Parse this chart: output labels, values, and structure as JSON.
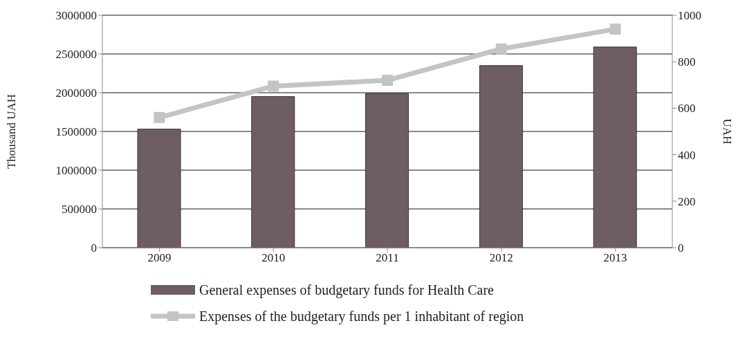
{
  "chart_data": {
    "type": "bar",
    "categories": [
      "2009",
      "2010",
      "2011",
      "2012",
      "2013"
    ],
    "series": [
      {
        "name": "General expenses of budgetary funds for Health Care",
        "color": "#6e5d64",
        "values": [
          1530000,
          1950000,
          1990000,
          2350000,
          2590000
        ]
      },
      {
        "name": "Expenses of the budgetary funds per 1 inhabitant of region",
        "type": "line",
        "axis": "y2",
        "color": "#c4c4c4",
        "marker": "square",
        "values": [
          560,
          695,
          720,
          855,
          940
        ]
      }
    ],
    "ylabel": "Thousand UAH",
    "y2label": "UAH",
    "ylim": [
      0,
      3000000
    ],
    "yticks": [
      0,
      500000,
      1000000,
      1500000,
      2000000,
      2500000,
      3000000
    ],
    "y2lim": [
      0,
      1000
    ],
    "y2ticks": [
      0,
      200,
      400,
      600,
      800,
      1000
    ],
    "grid": "y",
    "legend": "bottom"
  }
}
